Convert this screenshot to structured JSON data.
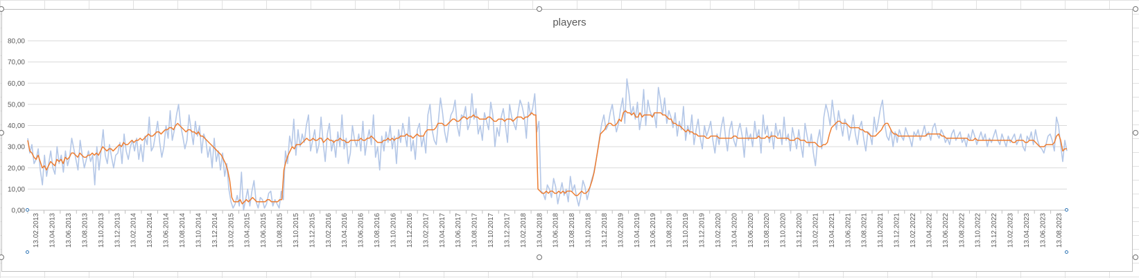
{
  "chart_data": {
    "type": "line",
    "title": "players",
    "xlabel": "",
    "ylabel": "",
    "ylim": [
      0,
      80
    ],
    "yticks": [
      "0,00",
      "10,00",
      "20,00",
      "30,00",
      "40,00",
      "50,00",
      "60,00",
      "70,00",
      "80,00"
    ],
    "grid": true,
    "legend": "none",
    "x_start": "13.02.2013",
    "x_end": "13.09.2023",
    "x_tick_labels": [
      "13.02.2013",
      "13.04.2013",
      "13.06.2013",
      "13.08.2013",
      "13.10.2013",
      "13.12.2013",
      "13.02.2014",
      "13.04.2014",
      "13.06.2014",
      "13.08.2014",
      "13.10.2014",
      "13.12.2014",
      "13.02.2015",
      "13.04.2015",
      "13.06.2015",
      "13.08.2015",
      "13.10.2015",
      "13.12.2015",
      "13.02.2016",
      "13.04.2016",
      "13.06.2016",
      "13.08.2016",
      "13.10.2016",
      "13.12.2016",
      "13.02.2017",
      "13.04.2017",
      "13.06.2017",
      "13.08.2017",
      "13.10.2017",
      "13.12.2017",
      "13.02.2018",
      "13.04.2018",
      "13.06.2018",
      "13.08.2018",
      "13.10.2018",
      "13.12.2018",
      "13.02.2019",
      "13.04.2019",
      "13.06.2019",
      "13.08.2019",
      "13.10.2019",
      "13.12.2019",
      "13.02.2020",
      "13.04.2020",
      "13.06.2020",
      "13.08.2020",
      "13.10.2020",
      "13.12.2020",
      "13.02.2021",
      "13.04.2021",
      "13.06.2021",
      "13.08.2021",
      "13.10.2021",
      "13.12.2021",
      "13.02.2022",
      "13.04.2022",
      "13.06.2022",
      "13.08.2022",
      "13.10.2022",
      "13.12.2022",
      "13.02.2023",
      "13.04.2023",
      "13.06.2023",
      "13.08.2023"
    ],
    "series": [
      {
        "color": "#b4c7e7",
        "values": [
          34,
          27,
          31,
          22,
          24,
          29,
          19,
          12,
          26,
          16,
          22,
          28,
          20,
          17,
          30,
          22,
          26,
          18,
          28,
          21,
          25,
          34,
          29,
          24,
          19,
          33,
          26,
          20,
          24,
          28,
          23,
          26,
          12,
          30,
          19,
          28,
          38,
          26,
          22,
          31,
          25,
          20,
          26,
          27,
          32,
          22,
          36,
          28,
          24,
          30,
          33,
          28,
          34,
          24,
          31,
          23,
          35,
          31,
          44,
          28,
          30,
          36,
          42,
          32,
          25,
          30,
          40,
          34,
          47,
          33,
          38,
          45,
          50,
          40,
          35,
          29,
          33,
          45,
          38,
          31,
          42,
          35,
          40,
          27,
          36,
          33,
          25,
          30,
          20,
          34,
          23,
          28,
          19,
          27,
          16,
          22,
          10,
          4,
          1,
          3,
          7,
          2,
          18,
          0,
          5,
          10,
          2,
          9,
          14,
          4,
          1,
          6,
          5,
          1,
          3,
          8,
          9,
          2,
          5,
          3,
          1,
          9,
          5,
          28,
          22,
          35,
          30,
          43,
          26,
          38,
          30,
          36,
          32,
          40,
          45,
          28,
          33,
          38,
          27,
          31,
          44,
          32,
          23,
          36,
          41,
          28,
          33,
          25,
          37,
          30,
          45,
          29,
          34,
          22,
          27,
          40,
          33,
          30,
          36,
          28,
          42,
          26,
          33,
          38,
          31,
          45,
          25,
          30,
          19,
          35,
          28,
          37,
          32,
          40,
          29,
          35,
          22,
          38,
          32,
          41,
          36,
          30,
          44,
          28,
          33,
          24,
          38,
          41,
          30,
          35,
          27,
          45,
          50,
          38,
          33,
          31,
          42,
          53,
          46,
          37,
          32,
          40,
          45,
          47,
          52,
          40,
          35,
          45,
          44,
          49,
          38,
          41,
          55,
          43,
          48,
          36,
          40,
          33,
          46,
          42,
          38,
          51,
          45,
          30,
          39,
          35,
          44,
          48,
          40,
          32,
          50,
          44,
          41,
          38,
          46,
          52,
          49,
          44,
          34,
          51,
          45,
          48,
          55,
          37,
          42,
          9,
          8,
          5,
          12,
          10,
          6,
          15,
          11,
          3,
          8,
          13,
          7,
          10,
          4,
          16,
          9,
          12,
          6,
          2,
          7,
          14,
          11,
          5,
          9,
          14,
          17,
          22,
          28,
          35,
          41,
          45,
          38,
          40,
          46,
          50,
          43,
          37,
          41,
          48,
          53,
          41,
          62,
          55,
          45,
          49,
          43,
          51,
          38,
          44,
          57,
          40,
          52,
          47,
          44,
          46,
          39,
          58,
          52,
          45,
          53,
          41,
          47,
          44,
          39,
          46,
          35,
          42,
          38,
          49,
          33,
          40,
          36,
          45,
          31,
          38,
          43,
          34,
          29,
          40,
          35,
          38,
          42,
          33,
          27,
          36,
          31,
          39,
          44,
          35,
          28,
          38,
          42,
          33,
          30,
          37,
          41,
          35,
          25,
          39,
          33,
          36,
          30,
          42,
          34,
          38,
          27,
          45,
          36,
          40,
          32,
          37,
          29,
          41,
          35,
          38,
          31,
          44,
          33,
          36,
          28,
          39,
          34,
          29,
          38,
          31,
          25,
          41,
          35,
          30,
          36,
          27,
          21,
          33,
          38,
          29,
          44,
          50,
          46,
          40,
          52,
          44,
          38,
          47,
          41,
          35,
          43,
          40,
          33,
          38,
          45,
          36,
          31,
          39,
          42,
          34,
          28,
          37,
          36,
          31,
          44,
          37,
          42,
          48,
          52,
          41,
          35,
          33,
          38,
          30,
          37,
          32,
          38,
          35,
          33,
          39,
          36,
          34,
          30,
          37,
          35,
          38,
          33,
          36,
          40,
          35,
          37,
          33,
          39,
          41,
          36,
          34,
          38,
          36,
          32,
          34,
          31,
          36,
          38,
          33,
          35,
          37,
          32,
          34,
          30,
          36,
          33,
          38,
          35,
          31,
          34,
          37,
          33,
          36,
          30,
          34,
          32,
          35,
          38,
          33,
          31,
          36,
          33,
          30,
          35,
          32,
          34,
          36,
          31,
          33,
          36,
          30,
          28,
          35,
          33,
          37,
          31,
          38,
          33,
          30,
          29,
          27,
          31,
          35,
          36,
          33,
          28,
          44,
          40,
          31,
          23,
          33,
          28
        ]
      },
      {
        "color": "#ed7d31",
        "values": [
          33,
          28,
          27,
          25,
          24,
          26,
          23,
          20,
          21,
          19,
          21,
          23,
          22,
          21,
          24,
          23,
          24,
          22,
          25,
          24,
          25,
          27,
          27,
          26,
          25,
          27,
          26,
          25,
          25,
          26,
          26,
          27,
          26,
          27,
          26,
          28,
          30,
          29,
          28,
          29,
          29,
          28,
          29,
          30,
          31,
          30,
          32,
          31,
          31,
          32,
          33,
          32,
          33,
          33,
          34,
          33,
          34,
          35,
          36,
          35,
          35,
          36,
          37,
          37,
          36,
          37,
          38,
          38,
          39,
          39,
          38,
          40,
          41,
          40,
          39,
          38,
          37,
          38,
          38,
          37,
          37,
          36,
          37,
          35,
          35,
          34,
          33,
          32,
          31,
          30,
          29,
          28,
          27,
          26,
          24,
          22,
          19,
          14,
          6,
          4,
          4,
          4,
          5,
          3,
          4,
          5,
          4,
          5,
          6,
          5,
          4,
          4,
          4,
          4,
          4,
          5,
          5,
          4,
          4,
          4,
          4,
          5,
          5,
          19,
          23,
          26,
          28,
          30,
          29,
          31,
          31,
          31,
          32,
          33,
          34,
          33,
          33,
          34,
          33,
          33,
          34,
          34,
          32,
          33,
          34,
          33,
          33,
          32,
          33,
          33,
          34,
          33,
          33,
          32,
          32,
          33,
          33,
          33,
          33,
          33,
          34,
          33,
          33,
          34,
          34,
          35,
          34,
          33,
          32,
          32,
          32,
          33,
          33,
          34,
          33,
          34,
          33,
          34,
          34,
          35,
          35,
          35,
          36,
          35,
          35,
          34,
          35,
          36,
          35,
          35,
          35,
          37,
          38,
          38,
          38,
          38,
          39,
          41,
          41,
          41,
          40,
          40,
          41,
          42,
          43,
          43,
          42,
          42,
          43,
          44,
          44,
          43,
          44,
          44,
          45,
          44,
          44,
          43,
          43,
          43,
          43,
          44,
          44,
          43,
          42,
          42,
          43,
          43,
          43,
          42,
          43,
          43,
          43,
          42,
          43,
          44,
          44,
          44,
          43,
          44,
          44,
          45,
          46,
          45,
          45,
          10,
          9,
          8,
          8,
          9,
          8,
          9,
          9,
          8,
          8,
          9,
          8,
          9,
          8,
          9,
          9,
          9,
          8,
          7,
          7,
          8,
          9,
          8,
          8,
          9,
          11,
          14,
          18,
          24,
          30,
          36,
          37,
          38,
          40,
          41,
          41,
          40,
          40,
          41,
          43,
          42,
          46,
          47,
          46,
          46,
          45,
          46,
          44,
          44,
          46,
          44,
          45,
          45,
          45,
          45,
          44,
          46,
          46,
          46,
          46,
          45,
          45,
          44,
          43,
          43,
          41,
          41,
          40,
          40,
          39,
          38,
          37,
          38,
          37,
          37,
          36,
          36,
          35,
          35,
          35,
          35,
          34,
          34,
          35,
          35,
          35,
          35,
          34,
          34,
          34,
          34,
          34,
          34,
          34,
          35,
          35,
          34,
          34,
          34,
          34,
          34,
          34,
          34,
          34,
          34,
          34,
          35,
          34,
          34,
          34,
          35,
          34,
          35,
          35,
          35,
          34,
          34,
          34,
          34,
          34,
          34,
          33,
          33,
          33,
          34,
          34,
          33,
          33,
          33,
          32,
          32,
          32,
          32,
          32,
          31,
          30,
          30,
          31,
          31,
          32,
          36,
          39,
          40,
          41,
          42,
          42,
          41,
          41,
          41,
          40,
          39,
          39,
          39,
          39,
          39,
          38,
          38,
          37,
          37,
          36,
          35,
          35,
          35,
          36,
          37,
          38,
          40,
          41,
          41,
          39,
          37,
          36,
          36,
          35,
          35,
          35,
          35,
          35,
          35,
          35,
          35,
          35,
          35,
          35,
          35,
          35,
          35,
          36,
          36,
          36,
          36,
          36,
          36,
          36,
          35,
          35,
          34,
          34,
          34,
          34,
          34,
          34,
          34,
          34,
          34,
          34,
          34,
          33,
          33,
          33,
          34,
          33,
          33,
          33,
          33,
          33,
          33,
          33,
          33,
          33,
          33,
          33,
          33,
          33,
          33,
          33,
          33,
          33,
          32,
          32,
          33,
          33,
          33,
          33,
          32,
          32,
          33,
          33,
          33,
          32,
          31,
          30,
          30,
          30,
          31,
          31,
          31,
          31,
          32,
          35,
          36,
          33,
          28,
          29,
          29
        ]
      }
    ]
  }
}
